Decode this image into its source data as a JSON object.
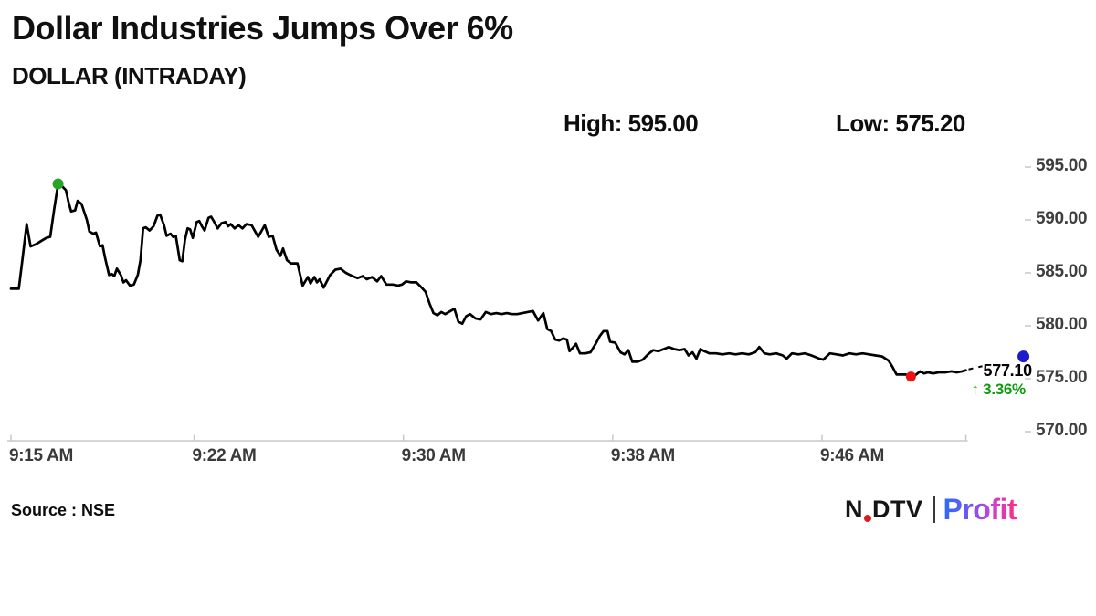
{
  "header": {
    "title": "Dollar Industries Jumps Over 6%",
    "subtitle": "DOLLAR (INTRADAY)",
    "high_label": "High: 595.00",
    "low_label": "Low: 575.20"
  },
  "footer": {
    "source": "Source : NSE",
    "logo": {
      "ndtv": "NDTV",
      "profit": "Profit"
    }
  },
  "colors": {
    "line": "#000000",
    "axis_line": "#c9c9c9",
    "axis_text": "#3e3e3e",
    "dot_high": "#28a428",
    "dot_low": "#ee1111",
    "dot_last": "#1c1ccd",
    "change_green": "#0c9c0c",
    "ndtv_red": "#e01a1a"
  },
  "chart_data": {
    "type": "line",
    "title": "DOLLAR (INTRADAY)",
    "xlabel": "",
    "ylabel": "",
    "grid": false,
    "legend": "none",
    "x_axis": {
      "tick_labels": [
        "9:15 AM",
        "9:22 AM",
        "9:30 AM",
        "9:38 AM",
        "9:46 AM"
      ],
      "tick_minutes": [
        0,
        7,
        15,
        23,
        31
      ],
      "unit": "minutes since 9:15 AM"
    },
    "y_axis": {
      "tick_labels": [
        "595.00",
        "590.00",
        "585.00",
        "580.00",
        "575.00",
        "570.00"
      ],
      "tick_values": [
        595,
        590,
        585,
        580,
        575,
        570
      ],
      "range": [
        570,
        595
      ],
      "side": "right"
    },
    "markers": {
      "high": {
        "minute": 1.8,
        "value": 593.4
      },
      "low": {
        "minute": 34.4,
        "value": 575.2
      },
      "last": {
        "minute": 38.7,
        "value": 577.1
      }
    },
    "annotations": {
      "high": "High: 595.00",
      "low": "Low: 575.20",
      "last_price": "577.10",
      "change_pct": "↑ 3.36%"
    },
    "series": [
      {
        "name": "DOLLAR intraday price",
        "points": [
          [
            0,
            583.5
          ],
          [
            0.3,
            583.5
          ],
          [
            0.45,
            586.5
          ],
          [
            0.6,
            589.6
          ],
          [
            0.75,
            587.5
          ],
          [
            0.95,
            587.7
          ],
          [
            1.15,
            588.0
          ],
          [
            1.35,
            588.3
          ],
          [
            1.5,
            588.4
          ],
          [
            1.65,
            591.0
          ],
          [
            1.8,
            593.4
          ],
          [
            1.95,
            593.2
          ],
          [
            2.1,
            592.8
          ],
          [
            2.2,
            591.7
          ],
          [
            2.3,
            590.8
          ],
          [
            2.45,
            590.9
          ],
          [
            2.55,
            591.8
          ],
          [
            2.7,
            591.5
          ],
          [
            2.9,
            590.0
          ],
          [
            3.0,
            588.9
          ],
          [
            3.15,
            588.7
          ],
          [
            3.25,
            588.8
          ],
          [
            3.4,
            587.5
          ],
          [
            3.5,
            587.6
          ],
          [
            3.6,
            586.4
          ],
          [
            3.75,
            584.8
          ],
          [
            3.85,
            584.9
          ],
          [
            3.95,
            584.7
          ],
          [
            4.05,
            585.4
          ],
          [
            4.2,
            584.8
          ],
          [
            4.3,
            584.1
          ],
          [
            4.4,
            584.3
          ],
          [
            4.55,
            583.8
          ],
          [
            4.7,
            583.9
          ],
          [
            4.85,
            584.8
          ],
          [
            4.95,
            586.2
          ],
          [
            5.05,
            589.2
          ],
          [
            5.15,
            589.3
          ],
          [
            5.3,
            589.0
          ],
          [
            5.45,
            589.4
          ],
          [
            5.6,
            590.4
          ],
          [
            5.7,
            590.5
          ],
          [
            5.85,
            589.5
          ],
          [
            5.95,
            588.5
          ],
          [
            6.1,
            588.7
          ],
          [
            6.2,
            588.4
          ],
          [
            6.3,
            588.5
          ],
          [
            6.45,
            586.2
          ],
          [
            6.55,
            586.1
          ],
          [
            6.65,
            588.1
          ],
          [
            6.75,
            589.2
          ],
          [
            6.85,
            589.1
          ],
          [
            6.95,
            588.3
          ],
          [
            7.1,
            589.8
          ],
          [
            7.2,
            589.9
          ],
          [
            7.3,
            589.4
          ],
          [
            7.4,
            589.0
          ],
          [
            7.55,
            590.2
          ],
          [
            7.65,
            590.3
          ],
          [
            7.75,
            589.9
          ],
          [
            7.9,
            589.2
          ],
          [
            8.05,
            589.7
          ],
          [
            8.2,
            589.8
          ],
          [
            8.3,
            589.4
          ],
          [
            8.4,
            589.6
          ],
          [
            8.55,
            589.2
          ],
          [
            8.7,
            589.5
          ],
          [
            8.85,
            589.2
          ],
          [
            9.0,
            589.6
          ],
          [
            9.2,
            589.5
          ],
          [
            9.45,
            588.4
          ],
          [
            9.7,
            589.5
          ],
          [
            9.85,
            588.4
          ],
          [
            10.0,
            588.5
          ],
          [
            10.15,
            587.2
          ],
          [
            10.3,
            586.6
          ],
          [
            10.4,
            587.3
          ],
          [
            10.55,
            586.2
          ],
          [
            10.7,
            585.9
          ],
          [
            10.95,
            585.9
          ],
          [
            11.15,
            583.8
          ],
          [
            11.35,
            584.6
          ],
          [
            11.45,
            584.0
          ],
          [
            11.6,
            584.6
          ],
          [
            11.7,
            584.1
          ],
          [
            11.8,
            584.4
          ],
          [
            11.95,
            583.6
          ],
          [
            12.2,
            584.8
          ],
          [
            12.4,
            585.3
          ],
          [
            12.6,
            585.4
          ],
          [
            12.8,
            585.0
          ],
          [
            13.05,
            584.7
          ],
          [
            13.25,
            584.5
          ],
          [
            13.45,
            584.7
          ],
          [
            13.6,
            584.4
          ],
          [
            13.8,
            584.6
          ],
          [
            14.0,
            584.2
          ],
          [
            14.15,
            584.7
          ],
          [
            14.35,
            583.9
          ],
          [
            14.6,
            583.9
          ],
          [
            14.8,
            583.8
          ],
          [
            14.95,
            583.9
          ],
          [
            15.1,
            584.2
          ],
          [
            15.3,
            584.1
          ],
          [
            15.5,
            584.1
          ],
          [
            15.7,
            583.6
          ],
          [
            15.85,
            583.2
          ],
          [
            16.0,
            582.1
          ],
          [
            16.15,
            581.2
          ],
          [
            16.3,
            581.0
          ],
          [
            16.45,
            581.3
          ],
          [
            16.6,
            581.1
          ],
          [
            16.8,
            581.4
          ],
          [
            16.95,
            581.6
          ],
          [
            17.1,
            580.4
          ],
          [
            17.25,
            580.2
          ],
          [
            17.4,
            580.9
          ],
          [
            17.55,
            581.1
          ],
          [
            17.75,
            580.7
          ],
          [
            17.95,
            580.6
          ],
          [
            18.15,
            581.3
          ],
          [
            18.35,
            581.1
          ],
          [
            18.55,
            581.2
          ],
          [
            18.75,
            581.1
          ],
          [
            18.95,
            581.2
          ],
          [
            19.15,
            581.1
          ],
          [
            19.35,
            581.1
          ],
          [
            19.55,
            581.2
          ],
          [
            19.75,
            581.3
          ],
          [
            19.95,
            581.4
          ],
          [
            20.15,
            580.5
          ],
          [
            20.35,
            581.2
          ],
          [
            20.5,
            579.7
          ],
          [
            20.65,
            579.5
          ],
          [
            20.8,
            578.7
          ],
          [
            20.95,
            578.6
          ],
          [
            21.1,
            578.8
          ],
          [
            21.25,
            578.7
          ],
          [
            21.35,
            577.6
          ],
          [
            21.5,
            578.0
          ],
          [
            21.6,
            578.3
          ],
          [
            21.75,
            577.4
          ],
          [
            21.95,
            577.4
          ],
          [
            22.15,
            577.5
          ],
          [
            22.35,
            578.3
          ],
          [
            22.5,
            579.0
          ],
          [
            22.65,
            579.5
          ],
          [
            22.8,
            579.5
          ],
          [
            22.9,
            578.5
          ],
          [
            23.1,
            578.4
          ],
          [
            23.3,
            577.5
          ],
          [
            23.45,
            577.3
          ],
          [
            23.6,
            577.7
          ],
          [
            23.75,
            576.6
          ],
          [
            23.95,
            576.6
          ],
          [
            24.15,
            576.8
          ],
          [
            24.35,
            577.3
          ],
          [
            24.55,
            577.7
          ],
          [
            24.75,
            577.6
          ],
          [
            24.95,
            577.8
          ],
          [
            25.15,
            578.0
          ],
          [
            25.35,
            577.8
          ],
          [
            25.55,
            577.7
          ],
          [
            25.75,
            577.8
          ],
          [
            25.9,
            577.2
          ],
          [
            26.05,
            577.5
          ],
          [
            26.2,
            576.9
          ],
          [
            26.35,
            577.8
          ],
          [
            26.5,
            577.6
          ],
          [
            26.7,
            577.4
          ],
          [
            26.95,
            577.4
          ],
          [
            27.2,
            577.3
          ],
          [
            27.45,
            577.4
          ],
          [
            27.7,
            577.3
          ],
          [
            27.95,
            577.4
          ],
          [
            28.2,
            577.3
          ],
          [
            28.45,
            577.5
          ],
          [
            28.6,
            578.0
          ],
          [
            28.8,
            577.4
          ],
          [
            29.0,
            577.3
          ],
          [
            29.25,
            577.4
          ],
          [
            29.5,
            577.2
          ],
          [
            29.65,
            576.9
          ],
          [
            29.85,
            577.4
          ],
          [
            30.1,
            577.3
          ],
          [
            30.35,
            577.4
          ],
          [
            30.6,
            577.2
          ],
          [
            30.9,
            576.9
          ],
          [
            31.05,
            576.8
          ],
          [
            31.3,
            577.4
          ],
          [
            31.55,
            577.3
          ],
          [
            31.8,
            577.2
          ],
          [
            32.05,
            577.4
          ],
          [
            32.3,
            577.3
          ],
          [
            32.55,
            577.4
          ],
          [
            32.8,
            577.3
          ],
          [
            33.05,
            577.2
          ],
          [
            33.3,
            577.1
          ],
          [
            33.55,
            576.7
          ],
          [
            33.7,
            576.1
          ],
          [
            33.85,
            575.4
          ],
          [
            34.0,
            575.4
          ],
          [
            34.2,
            575.4
          ],
          [
            34.4,
            575.2
          ],
          [
            34.55,
            575.3
          ],
          [
            34.75,
            575.7
          ],
          [
            34.9,
            575.5
          ],
          [
            35.05,
            575.6
          ],
          [
            35.25,
            575.5
          ],
          [
            35.45,
            575.6
          ],
          [
            35.7,
            575.6
          ],
          [
            35.95,
            575.7
          ],
          [
            36.15,
            575.6
          ],
          [
            36.35,
            575.7
          ],
          [
            36.5,
            575.8
          ]
        ]
      }
    ]
  }
}
